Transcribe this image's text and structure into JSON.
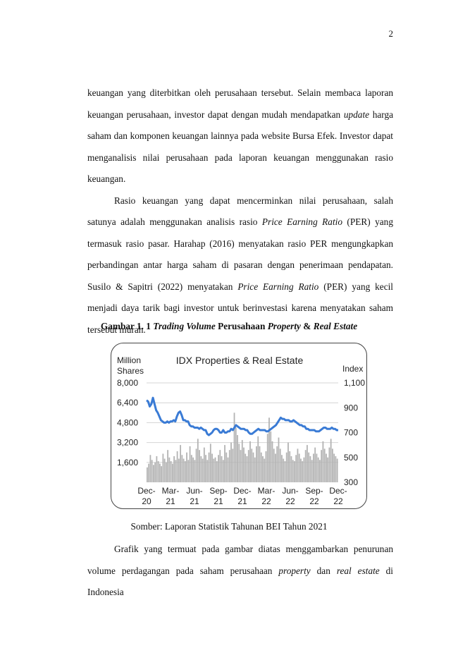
{
  "page_number": "2",
  "para1": {
    "t1": "keuangan yang diterbitkan oleh perusahaan tersebut. Selain membaca laporan keuangan perusahaan, investor dapat dengan mudah mendapatkan ",
    "t2": "update",
    "t3": " harga saham dan komponen keuangan lainnya pada website Bursa Efek. Investor dapat menganalisis nilai perusahaan pada laporan keuangan menggunakan rasio keuangan."
  },
  "para2": {
    "t1": "Rasio keuangan yang dapat mencerminkan nilai perusahaan, salah satunya adalah menggunakan analisis rasio ",
    "t2": "Price Earning Ratio",
    "t3": " (PER) yang termasuk rasio pasar. Harahap (2016) menyatakan rasio PER mengungkapkan perbandingan antar harga saham di pasaran dengan penerimaan pendapatan. Susilo & Sapitri (2022) menyatakan ",
    "t4": "Price Earning Ratio",
    "t5": " (PER) yang kecil menjadi daya tarik bagi investor untuk berinvestasi karena menyatakan saham tersebut murah."
  },
  "figure": {
    "caption_prefix": "Gambar 1. 1 ",
    "caption_i1": "Trading Volume",
    "caption_mid": " Perusahaan ",
    "caption_i2": "Property",
    "caption_amp": " & ",
    "caption_i3": "Real Estate",
    "source": "Somber: Laporan Statistik Tahunan BEI Tahun 2021"
  },
  "chart_data": {
    "type": "line",
    "title": "IDX Properties & Real Estate",
    "left_axis_label_line1": "Million",
    "left_axis_label_line2": "Shares",
    "right_axis_label": "Index",
    "left_ticks": [
      "8,000",
      "6,400",
      "4,800",
      "3,200",
      "1,600"
    ],
    "right_ticks": [
      "1,100",
      "900",
      "700",
      "500",
      "300"
    ],
    "ylim_left": [
      0,
      8000
    ],
    "ylim_right": [
      300,
      1100
    ],
    "x_ticks": [
      {
        "top": "Dec-",
        "bottom": "20"
      },
      {
        "top": "Mar-",
        "bottom": "21"
      },
      {
        "top": "Jun-",
        "bottom": "21"
      },
      {
        "top": "Sep-",
        "bottom": "21"
      },
      {
        "top": "Dec-",
        "bottom": "21"
      },
      {
        "top": "Mar-",
        "bottom": "22"
      },
      {
        "top": "Jun-",
        "bottom": "22"
      },
      {
        "top": "Sep-",
        "bottom": "22"
      },
      {
        "top": "Dec-",
        "bottom": "22"
      }
    ],
    "grid": true,
    "line_color": "#3a7bd5",
    "bar_color": "#b3b3b3",
    "index_series": {
      "name": "Index",
      "values": [
        960,
        950,
        910,
        930,
        980,
        930,
        880,
        860,
        830,
        800,
        790,
        780,
        780,
        790,
        780,
        790,
        790,
        800,
        790,
        830,
        860,
        870,
        840,
        800,
        800,
        790,
        790,
        760,
        750,
        750,
        740,
        740,
        740,
        730,
        740,
        730,
        720,
        720,
        690,
        680,
        690,
        700,
        720,
        730,
        730,
        720,
        700,
        700,
        720,
        700,
        700,
        710,
        710,
        730,
        720,
        740,
        760,
        750,
        740,
        730,
        730,
        730,
        720,
        720,
        700,
        690,
        690,
        700,
        710,
        720,
        730,
        720,
        720,
        720,
        720,
        710,
        710,
        720,
        730,
        740,
        750,
        760,
        780,
        800,
        820,
        810,
        810,
        800,
        800,
        800,
        790,
        790,
        800,
        790,
        780,
        770,
        760,
        760,
        750,
        750,
        730,
        730,
        720,
        720,
        720,
        720,
        710,
        710,
        710,
        720,
        730,
        740,
        740,
        730,
        730,
        730,
        740,
        730,
        730,
        720,
        720
      ]
    },
    "volume_series": {
      "name": "Volume",
      "values": [
        1200,
        1500,
        2200,
        1800,
        1400,
        1600,
        2100,
        1700,
        1500,
        1300,
        2300,
        1900,
        1600,
        2600,
        2000,
        1700,
        1500,
        2100,
        1800,
        2500,
        1900,
        3000,
        2200,
        1900,
        1700,
        2400,
        1800,
        2900,
        2200,
        2000,
        1800,
        2700,
        3500,
        2600,
        2100,
        1900,
        2800,
        2200,
        1800,
        2400,
        3100,
        2300,
        1900,
        2000,
        1700,
        2200,
        2600,
        2100,
        1800,
        3000,
        2400,
        2000,
        2600,
        3200,
        2700,
        5600,
        4400,
        3800,
        3100,
        2600,
        3400,
        2800,
        2300,
        2100,
        2600,
        3300,
        2700,
        2400,
        2000,
        2900,
        3700,
        2900,
        2400,
        2100,
        1900,
        2500,
        3900,
        5200,
        4100,
        3300,
        2700,
        2300,
        2900,
        3600,
        2700,
        2200,
        1900,
        1700,
        2400,
        3200,
        2500,
        2100,
        1800,
        1700,
        2200,
        2700,
        2300,
        1900,
        1700,
        2000,
        2600,
        3000,
        2400,
        2100,
        1800,
        2300,
        2800,
        2300,
        2000,
        1800,
        2600,
        3300,
        2700,
        2300,
        2000,
        2800,
        3500,
        2700,
        2300,
        2100,
        1900
      ]
    }
  }
}
